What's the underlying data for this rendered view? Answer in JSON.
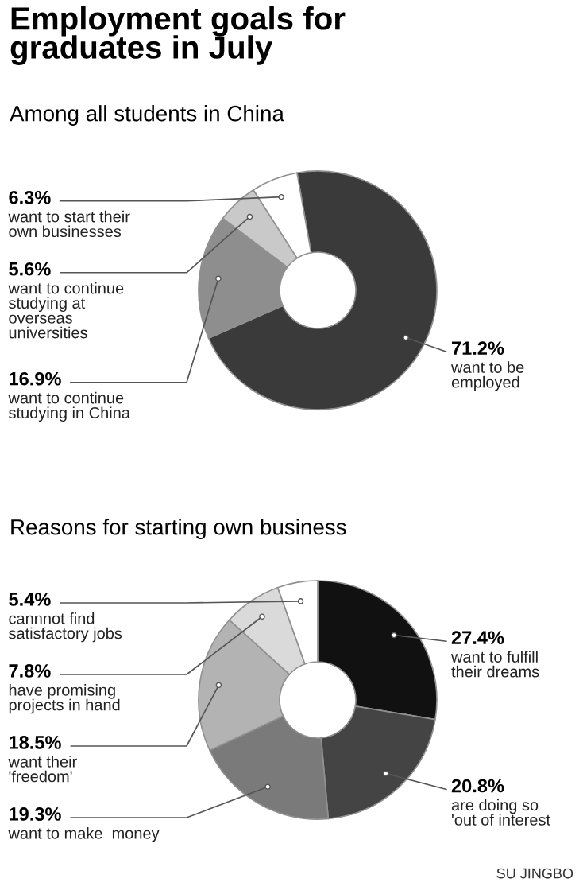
{
  "chart_data": [
    {
      "type": "donut",
      "title": "Employment goals for\ngraduates in July",
      "subtitle": "Among all students in China",
      "categories": [
        "want to be\nemployed",
        "want to continue\nstudying in China",
        "want to continue\nstudying at\noverseas\nuniversities",
        "want to start their\nown businesses"
      ],
      "values": [
        71.2,
        16.9,
        5.6,
        6.3
      ],
      "value_labels": [
        "71.2%",
        "16.9%",
        "5.6%",
        "6.3%"
      ],
      "colors": [
        "#3a3a3a",
        "#8e8e8e",
        "#c9c9c9",
        "#ffffff"
      ]
    },
    {
      "type": "donut",
      "title": "Reasons for starting own business",
      "categories": [
        "want to fulfill\ntheir dreams",
        "are doing so\n'out of interest",
        "want to make  money",
        "want their\n'freedom'",
        "have promising\nprojects in hand",
        "cannnot find\nsatisfactory jobs"
      ],
      "values": [
        27.4,
        20.8,
        19.3,
        18.5,
        7.8,
        5.4
      ],
      "value_labels": [
        "27.4%",
        "20.8%",
        "19.3%",
        "18.5%",
        "7.8%",
        "5.4%"
      ],
      "colors": [
        "#111111",
        "#444444",
        "#7a7a7a",
        "#b3b3b3",
        "#dadada",
        "#ffffff"
      ],
      "annotations": [
        "SU JINGBO"
      ]
    }
  ]
}
